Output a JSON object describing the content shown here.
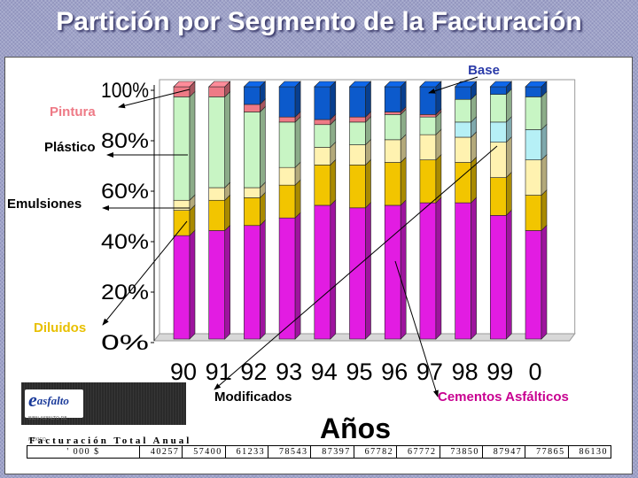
{
  "title": "Partición por Segmento de la Facturación",
  "logo_text": "asfalto",
  "logo_tagline": "BIEN ASFALTO DE MÉXICO",
  "totals": {
    "caption": "Facturación Total Anual",
    "unit": "' 000 $",
    "values": [
      "40257",
      "57400",
      "61233",
      "78543",
      "87397",
      "67782",
      "67772",
      "73850",
      "87947",
      "77865",
      "86130"
    ]
  },
  "colors": {
    "cementos": "#e21ce2",
    "modificados": "#f2c500",
    "diluidos": "#fff2b0",
    "emulsiones": "#b6f0f6",
    "plastico": "#c8f5c4",
    "pintura": "#ee7a86",
    "base": "#0c5acc"
  },
  "chart_data": {
    "type": "bar",
    "stacked": true,
    "percent": true,
    "categories": [
      "90",
      "91",
      "92",
      "93",
      "94",
      "95",
      "96",
      "97",
      "98",
      "99",
      "0"
    ],
    "xlabel": "Años",
    "ylabel": "",
    "ylim": [
      0,
      100
    ],
    "yticks": [
      "0%",
      "20%",
      "40%",
      "60%",
      "80%",
      "100%"
    ],
    "grid": false,
    "series": [
      {
        "name": "Cementos Asfálticos",
        "color_key": "cementos",
        "values": [
          41,
          43,
          45,
          48,
          53,
          52,
          53,
          54,
          54,
          49,
          43
        ]
      },
      {
        "name": "Modificados",
        "color_key": "modificados",
        "values": [
          10,
          12,
          11,
          13,
          16,
          17,
          17,
          17,
          16,
          15,
          14
        ]
      },
      {
        "name": "Diluidos",
        "color_key": "diluidos",
        "values": [
          4,
          5,
          4,
          7,
          7,
          8,
          9,
          10,
          10,
          14,
          14
        ]
      },
      {
        "name": "Emulsiones",
        "color_key": "emulsiones",
        "values": [
          0,
          0,
          0,
          0,
          0,
          0,
          0,
          0,
          6,
          8,
          12
        ]
      },
      {
        "name": "Plástico",
        "color_key": "plastico",
        "values": [
          41,
          36,
          30,
          18,
          9,
          9,
          10,
          7,
          9,
          11,
          13
        ]
      },
      {
        "name": "Pintura",
        "color_key": "pintura",
        "values": [
          4,
          4,
          3,
          2,
          2,
          2,
          1,
          1,
          0,
          0,
          0
        ]
      },
      {
        "name": "Base",
        "color_key": "base",
        "values": [
          0,
          0,
          7,
          12,
          13,
          12,
          10,
          11,
          5,
          3,
          4
        ]
      }
    ]
  }
}
